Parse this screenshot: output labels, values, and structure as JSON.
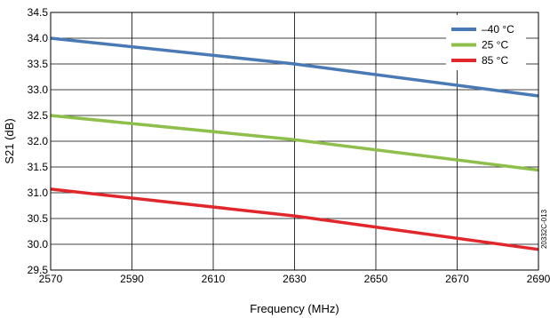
{
  "chart_data": {
    "type": "line",
    "title": "",
    "xlabel": "Frequency (MHz)",
    "ylabel": "S21 (dB)",
    "xlim": [
      2570,
      2690
    ],
    "ylim": [
      29.5,
      34.5
    ],
    "x_ticks": [
      "2570",
      "2590",
      "2610",
      "2630",
      "2650",
      "2670",
      "2690"
    ],
    "y_ticks": [
      "29.5",
      "30.0",
      "30.5",
      "31.0",
      "31.5",
      "32.0",
      "32.5",
      "33.0",
      "33.5",
      "34.0",
      "34.5"
    ],
    "grid": true,
    "legend_position": "top-right",
    "series": [
      {
        "name": "–40 °C",
        "color": "#4a7ab5",
        "x": [
          2570,
          2630,
          2690
        ],
        "y": [
          34.0,
          33.5,
          32.88
        ]
      },
      {
        "name": "25 °C",
        "color": "#8dbf4a",
        "x": [
          2570,
          2630,
          2690
        ],
        "y": [
          32.5,
          32.03,
          31.44
        ]
      },
      {
        "name": "85 °C",
        "color": "#e0282c",
        "x": [
          2570,
          2630,
          2690
        ],
        "y": [
          31.07,
          30.55,
          29.9
        ]
      }
    ],
    "annotation": "20332C-013"
  }
}
